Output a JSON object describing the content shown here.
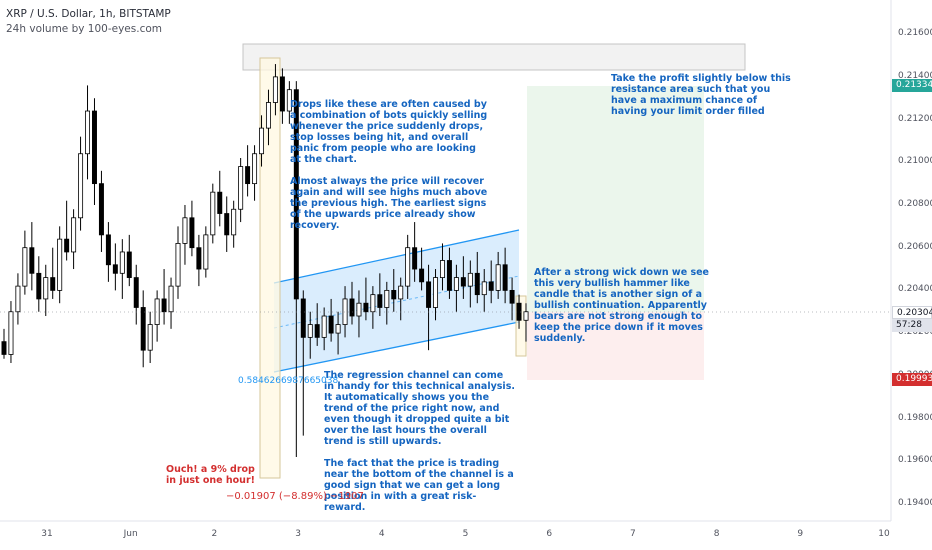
{
  "header": {
    "title": "XRP / U.S. Dollar, 1h, BITSTAMP",
    "indicator": "24h volume by 100-eyes.com"
  },
  "annotations": {
    "take_profit": "Take the profit slightly below this resistance area such that you have a maximum chance of having your limit order filled",
    "drops": "Drops like these are often caused by a combination of bots quickly selling whenever the price suddenly drops, stop losses being hit, and overall panic from people who are looking at the chart.\n\nAlmost always the price will recover again and will see highs much above the previous high. The earliest signs of the upwards price already show recovery.",
    "hammer": "After a strong wick down we see this very bullish hammer like candle that is another sign of a bullish continuation. Apparently bears are not strong enough to keep the price down if it moves suddenly.",
    "regression": "The regression channel can come in handy for this technical analysis. It automatically shows you the trend of the price right now, and even though it dropped quite a bit over the last hours the overall trend is still upwards.\n\nThe fact that the price is trading near the bottom of the channel is a good sign that we can get a long position in with a great risk-reward.",
    "ouch": "Ouch! a 9% drop in just one hour!"
  },
  "labels": {
    "regression_value": "0.5846266987665038",
    "price_change": "−0.01907 (−8.89%) −1907"
  },
  "price_tags": {
    "take_profit": "0.21334",
    "current": "0.20304",
    "countdown": "57:28",
    "stop_loss": "0.19993"
  },
  "colors": {
    "up_candle": "#ffffff",
    "down_candle": "#000000",
    "channel": "#2196f3",
    "profit_zone": "#e8f5e9",
    "loss_zone": "#fdecec",
    "annotation_text": "#1565c0"
  },
  "chart_data": {
    "type": "candlestick",
    "title": "XRP / U.S. Dollar, 1h, BITSTAMP",
    "ylim": [
      0.1932,
      0.2176
    ],
    "y_ticks": [
      "0.21600",
      "0.21400",
      "0.21200",
      "0.21000",
      "0.20800",
      "0.20600",
      "0.20400",
      "0.20200",
      "0.20000",
      "0.19800",
      "0.19600",
      "0.19400"
    ],
    "x_ticks": [
      "31",
      "Jun",
      "2",
      "3",
      "4",
      "5",
      "6",
      "7",
      "8",
      "9",
      "10"
    ],
    "last_price": 0.20304,
    "take_profit": 0.21334,
    "stop_loss": 0.19993,
    "change": "−0.01907 (−8.89%)",
    "grid": false,
    "candles": [
      [
        0.2016,
        0.2022,
        0.2008,
        0.201
      ],
      [
        0.201,
        0.2035,
        0.2006,
        0.203
      ],
      [
        0.203,
        0.2048,
        0.2024,
        0.2042
      ],
      [
        0.2042,
        0.2068,
        0.2038,
        0.206
      ],
      [
        0.206,
        0.2072,
        0.204,
        0.2048
      ],
      [
        0.2048,
        0.2056,
        0.203,
        0.2036
      ],
      [
        0.2036,
        0.2052,
        0.2028,
        0.2046
      ],
      [
        0.2046,
        0.206,
        0.2036,
        0.204
      ],
      [
        0.204,
        0.207,
        0.2034,
        0.2064
      ],
      [
        0.2064,
        0.2082,
        0.2054,
        0.2058
      ],
      [
        0.2058,
        0.2078,
        0.205,
        0.2074
      ],
      [
        0.2074,
        0.2112,
        0.2068,
        0.2104
      ],
      [
        0.2104,
        0.2136,
        0.2092,
        0.2124
      ],
      [
        0.2124,
        0.213,
        0.208,
        0.209
      ],
      [
        0.209,
        0.2096,
        0.2058,
        0.2066
      ],
      [
        0.2066,
        0.2072,
        0.2044,
        0.2052
      ],
      [
        0.2052,
        0.2062,
        0.204,
        0.2048
      ],
      [
        0.2048,
        0.2064,
        0.2036,
        0.2058
      ],
      [
        0.2058,
        0.2066,
        0.2042,
        0.2046
      ],
      [
        0.2046,
        0.2052,
        0.2024,
        0.2032
      ],
      [
        0.2032,
        0.204,
        0.2004,
        0.2012
      ],
      [
        0.2012,
        0.203,
        0.2006,
        0.2024
      ],
      [
        0.2024,
        0.204,
        0.2016,
        0.2036
      ],
      [
        0.2036,
        0.205,
        0.2024,
        0.203
      ],
      [
        0.203,
        0.2046,
        0.2022,
        0.2042
      ],
      [
        0.2042,
        0.207,
        0.2036,
        0.2062
      ],
      [
        0.2062,
        0.208,
        0.2052,
        0.2074
      ],
      [
        0.2074,
        0.2082,
        0.2056,
        0.206
      ],
      [
        0.206,
        0.2066,
        0.2042,
        0.205
      ],
      [
        0.205,
        0.207,
        0.2046,
        0.2066
      ],
      [
        0.2066,
        0.209,
        0.2062,
        0.2086
      ],
      [
        0.2086,
        0.2096,
        0.207,
        0.2076
      ],
      [
        0.2076,
        0.2084,
        0.2058,
        0.2066
      ],
      [
        0.2066,
        0.2082,
        0.206,
        0.2078
      ],
      [
        0.2078,
        0.2102,
        0.2072,
        0.2098
      ],
      [
        0.2098,
        0.2108,
        0.2084,
        0.209
      ],
      [
        0.209,
        0.2108,
        0.2082,
        0.2104
      ],
      [
        0.2104,
        0.2122,
        0.2098,
        0.2116
      ],
      [
        0.2116,
        0.2134,
        0.2108,
        0.2128
      ],
      [
        0.2128,
        0.2146,
        0.2122,
        0.214
      ],
      [
        0.214,
        0.2144,
        0.2118,
        0.2124
      ],
      [
        0.2124,
        0.2138,
        0.2118,
        0.2134
      ],
      [
        0.2134,
        0.2138,
        0.1962,
        0.2036
      ],
      [
        0.2036,
        0.204,
        0.1972,
        0.2018
      ],
      [
        0.2018,
        0.203,
        0.2008,
        0.2024
      ],
      [
        0.2024,
        0.2034,
        0.2014,
        0.2018
      ],
      [
        0.2018,
        0.2032,
        0.2012,
        0.2028
      ],
      [
        0.2028,
        0.2036,
        0.2016,
        0.202
      ],
      [
        0.202,
        0.203,
        0.201,
        0.2024
      ],
      [
        0.2024,
        0.2042,
        0.2018,
        0.2036
      ],
      [
        0.2036,
        0.2044,
        0.2024,
        0.2028
      ],
      [
        0.2028,
        0.204,
        0.2018,
        0.2034
      ],
      [
        0.2034,
        0.2046,
        0.2026,
        0.203
      ],
      [
        0.203,
        0.2042,
        0.2022,
        0.2038
      ],
      [
        0.2038,
        0.2048,
        0.2028,
        0.2032
      ],
      [
        0.2032,
        0.2044,
        0.2024,
        0.204
      ],
      [
        0.204,
        0.205,
        0.203,
        0.2036
      ],
      [
        0.2036,
        0.2046,
        0.2026,
        0.2042
      ],
      [
        0.2042,
        0.2066,
        0.2036,
        0.206
      ],
      [
        0.206,
        0.2072,
        0.2044,
        0.205
      ],
      [
        0.205,
        0.206,
        0.204,
        0.2044
      ],
      [
        0.2044,
        0.2052,
        0.2012,
        0.2032
      ],
      [
        0.2032,
        0.205,
        0.2026,
        0.2046
      ],
      [
        0.2046,
        0.2062,
        0.204,
        0.2054
      ],
      [
        0.2054,
        0.206,
        0.2036,
        0.204
      ],
      [
        0.204,
        0.2052,
        0.203,
        0.2046
      ],
      [
        0.2046,
        0.2056,
        0.2036,
        0.2042
      ],
      [
        0.2042,
        0.2054,
        0.2032,
        0.2048
      ],
      [
        0.2048,
        0.2058,
        0.2034,
        0.2038
      ],
      [
        0.2038,
        0.205,
        0.203,
        0.2044
      ],
      [
        0.2044,
        0.2054,
        0.2034,
        0.204
      ],
      [
        0.204,
        0.2058,
        0.2036,
        0.2052
      ],
      [
        0.2052,
        0.206,
        0.2034,
        0.204
      ],
      [
        0.204,
        0.2046,
        0.2026,
        0.2034
      ],
      [
        0.2034,
        0.2038,
        0.2022,
        0.2026
      ],
      [
        0.2026,
        0.2034,
        0.2016,
        0.203
      ]
    ]
  }
}
